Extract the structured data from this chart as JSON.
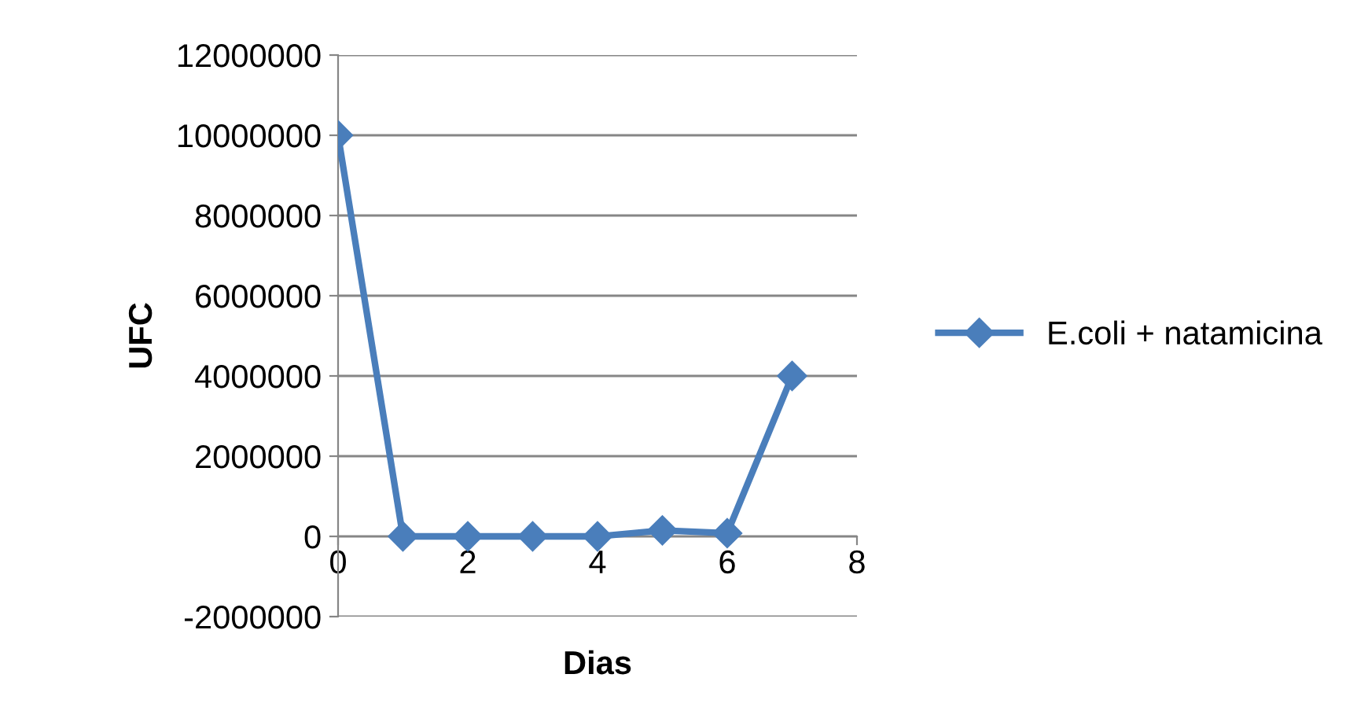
{
  "chart_data": {
    "type": "line",
    "xlabel": "Dias",
    "ylabel": "UFC",
    "x": [
      0,
      1,
      2,
      3,
      4,
      5,
      6,
      7
    ],
    "series": [
      {
        "name": "E.coli + natamicina",
        "color": "#4a7ebb",
        "values": [
          10000000,
          0,
          0,
          0,
          0,
          150000,
          80000,
          4000000
        ]
      }
    ],
    "xlim": [
      0,
      8
    ],
    "xticks": [
      0,
      2,
      4,
      6,
      8
    ],
    "ylim": [
      -2000000,
      12000000
    ],
    "yticks": [
      -2000000,
      0,
      2000000,
      4000000,
      6000000,
      8000000,
      10000000,
      12000000
    ],
    "grid": "y",
    "legend": "right",
    "marker": "diamond",
    "line_style": "solid"
  }
}
